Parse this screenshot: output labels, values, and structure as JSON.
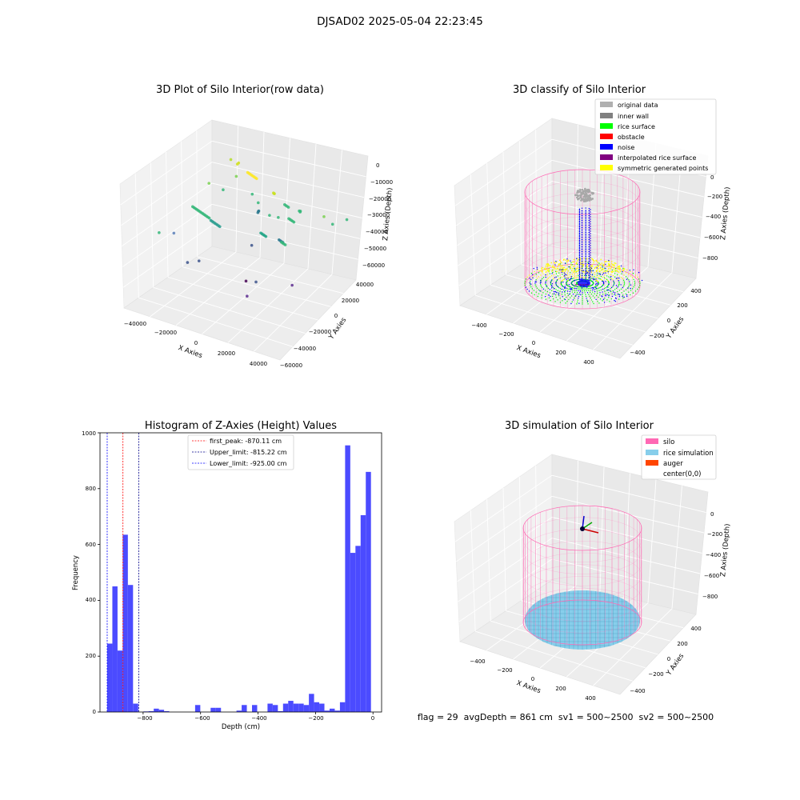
{
  "suptitle": "DJSAD02 2025-05-04 22:23:45",
  "footer": "flag = 29  avgDepth = 861 cm  sv1 = 500~2500  sv2 = 500~2500",
  "colors": {
    "hist_bar": "#4b4bff",
    "first_peak": "#ff0000",
    "upper_limit": "#00008b",
    "lower_limit": "#0000ff",
    "silo": "#ff69b4",
    "rice_simulation": "#87ceeb",
    "auger": "#ff4500",
    "original_data": "#b0b0b0",
    "inner_wall": "#808080",
    "rice_surface": "#00ff00",
    "obstacle": "#ff0000",
    "noise": "#0000ff",
    "interpolated_rice_surface": "#800080",
    "symmetric_generated_points": "#ffff00"
  },
  "chart_data": [
    {
      "type": "scatter",
      "title": "3D Plot of Silo Interior(row data)",
      "xlabel": "X Axies",
      "ylabel": "Y Axies",
      "zlabel": "Z Axies (Depth)",
      "x_ticks": [
        "−40000",
        "−20000",
        "0",
        "20000",
        "40000"
      ],
      "y_ticks": [
        "−60000",
        "−40000",
        "−20000",
        "0",
        "20000",
        "40000"
      ],
      "z_ticks": [
        "0",
        "−10000",
        "−20000",
        "−30000",
        "−40000",
        "−50000",
        "−60000"
      ],
      "xlim": [
        -45000,
        45000
      ],
      "ylim": [
        -60000,
        45000
      ],
      "zlim": [
        -68000,
        3000
      ],
      "colormap": "viridis"
    },
    {
      "type": "scatter",
      "title": "3D classify of Silo Interior",
      "xlabel": "X Axies",
      "ylabel": "Y Axies",
      "zlabel": "Z Axies (Depth)",
      "x_ticks": [
        "−400",
        "−200",
        "0",
        "200",
        "400"
      ],
      "y_ticks": [
        "−400",
        "−200",
        "0",
        "200",
        "400"
      ],
      "z_ticks": [
        "0",
        "−200",
        "−400",
        "−600",
        "−800"
      ],
      "xlim": [
        -500,
        500
      ],
      "ylim": [
        -500,
        500
      ],
      "zlim": [
        -950,
        50
      ],
      "legend": [
        "original data",
        "inner wall",
        "rice surface",
        "obstacle",
        "noise",
        "interpolated rice surface",
        "symmetric generated points"
      ],
      "legend_loc": "upper right"
    },
    {
      "type": "bar",
      "title": "Histogram of Z-Axies (Height) Values",
      "xlabel": "Depth (cm)",
      "ylabel": "Frequency",
      "xlim": [
        -950,
        30
      ],
      "ylim": [
        0,
        1000
      ],
      "x_ticks": [
        "−800",
        "−600",
        "−400",
        "−200",
        "0"
      ],
      "y_ticks": [
        "0",
        "200",
        "400",
        "600",
        "800",
        "1000"
      ],
      "bin_width": 18,
      "bins": [
        {
          "x0": -925,
          "v": 245
        },
        {
          "x0": -907,
          "v": 450
        },
        {
          "x0": -889,
          "v": 220
        },
        {
          "x0": -871,
          "v": 635
        },
        {
          "x0": -853,
          "v": 455
        },
        {
          "x0": -835,
          "v": 30
        },
        {
          "x0": -799,
          "v": 2
        },
        {
          "x0": -781,
          "v": 3
        },
        {
          "x0": -763,
          "v": 12
        },
        {
          "x0": -745,
          "v": 8
        },
        {
          "x0": -727,
          "v": 3
        },
        {
          "x0": -619,
          "v": 25
        },
        {
          "x0": -565,
          "v": 15
        },
        {
          "x0": -547,
          "v": 15
        },
        {
          "x0": -475,
          "v": 5
        },
        {
          "x0": -457,
          "v": 25
        },
        {
          "x0": -421,
          "v": 25
        },
        {
          "x0": -367,
          "v": 30
        },
        {
          "x0": -349,
          "v": 25
        },
        {
          "x0": -331,
          "v": 3
        },
        {
          "x0": -313,
          "v": 30
        },
        {
          "x0": -295,
          "v": 40
        },
        {
          "x0": -277,
          "v": 30
        },
        {
          "x0": -259,
          "v": 30
        },
        {
          "x0": -241,
          "v": 25
        },
        {
          "x0": -223,
          "v": 65
        },
        {
          "x0": -205,
          "v": 35
        },
        {
          "x0": -187,
          "v": 30
        },
        {
          "x0": -169,
          "v": 5
        },
        {
          "x0": -151,
          "v": 12
        },
        {
          "x0": -133,
          "v": 5
        },
        {
          "x0": -115,
          "v": 35
        },
        {
          "x0": -97,
          "v": 955
        },
        {
          "x0": -79,
          "v": 570
        },
        {
          "x0": -61,
          "v": 595
        },
        {
          "x0": -43,
          "v": 705
        },
        {
          "x0": -25,
          "v": 860
        }
      ],
      "lines": [
        {
          "name": "first_peak: -870.11 cm",
          "x": -870.11,
          "color": "#ff0000"
        },
        {
          "name": "Upper_limit: -815.22 cm",
          "x": -815.22,
          "color": "#00008b"
        },
        {
          "name": "Lower_limit: -925.00 cm",
          "x": -925.0,
          "color": "#0000ff"
        }
      ],
      "legend_loc": "upper center"
    },
    {
      "type": "scatter",
      "title": "3D simulation of Silo Interior",
      "xlabel": "X Axies",
      "ylabel": "Y Axies",
      "zlabel": "Z Axies (Depth)",
      "x_ticks": [
        "−400",
        "−200",
        "0",
        "200",
        "400"
      ],
      "y_ticks": [
        "−400",
        "−200",
        "0",
        "200",
        "400"
      ],
      "z_ticks": [
        "0",
        "−200",
        "−400",
        "−600",
        "−800"
      ],
      "xlim": [
        -500,
        500
      ],
      "ylim": [
        -500,
        500
      ],
      "zlim": [
        -950,
        50
      ],
      "legend": [
        "silo",
        "rice simulation",
        "auger",
        "center(0,0)"
      ],
      "legend_loc": "upper right"
    }
  ]
}
